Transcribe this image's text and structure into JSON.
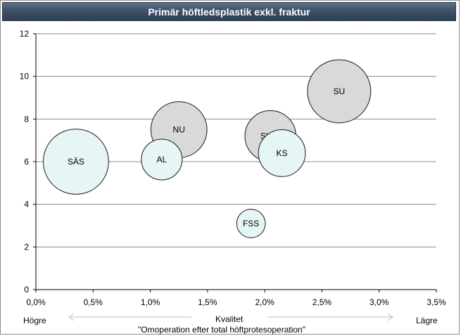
{
  "chart_data": {
    "type": "bubble",
    "title": "Primär höftledsplastik exkl. fraktur",
    "xlim": [
      0,
      3.5
    ],
    "ylim": [
      0,
      12
    ],
    "x_ticks": [
      "0,0%",
      "0,5%",
      "1,0%",
      "1,5%",
      "2,0%",
      "2,5%",
      "3,0%",
      "3,5%"
    ],
    "y_ticks": [
      "0",
      "2",
      "4",
      "6",
      "8",
      "10",
      "12"
    ],
    "grid": "horizontal",
    "xlabel": "Kvalitet",
    "xlabel_sub": "\"Omoperation efter total höftprotesoperation\"",
    "x_left_label": "Högre",
    "x_right_label": "Lägre",
    "points": [
      {
        "label": "NU",
        "x": 1.25,
        "y": 7.5,
        "size": 2.75,
        "group": "grey"
      },
      {
        "label": "SkaS",
        "x": 2.05,
        "y": 7.2,
        "size": 2.5,
        "group": "grey"
      },
      {
        "label": "SU",
        "x": 2.65,
        "y": 9.3,
        "size": 3.1,
        "group": "grey"
      },
      {
        "label": "SÄS",
        "x": 0.35,
        "y": 6.0,
        "size": 3.2,
        "group": "light"
      },
      {
        "label": "AL",
        "x": 1.1,
        "y": 6.1,
        "size": 2.0,
        "group": "light"
      },
      {
        "label": "KS",
        "x": 2.15,
        "y": 6.4,
        "size": 2.3,
        "group": "light"
      },
      {
        "label": "FSS",
        "x": 1.88,
        "y": 3.1,
        "size": 1.4,
        "group": "light"
      }
    ],
    "colors": {
      "grey": "#d9d9d9",
      "light": "#e6f5f5",
      "stroke": "#1a1a1a",
      "grid": "#8c8c8c"
    }
  }
}
